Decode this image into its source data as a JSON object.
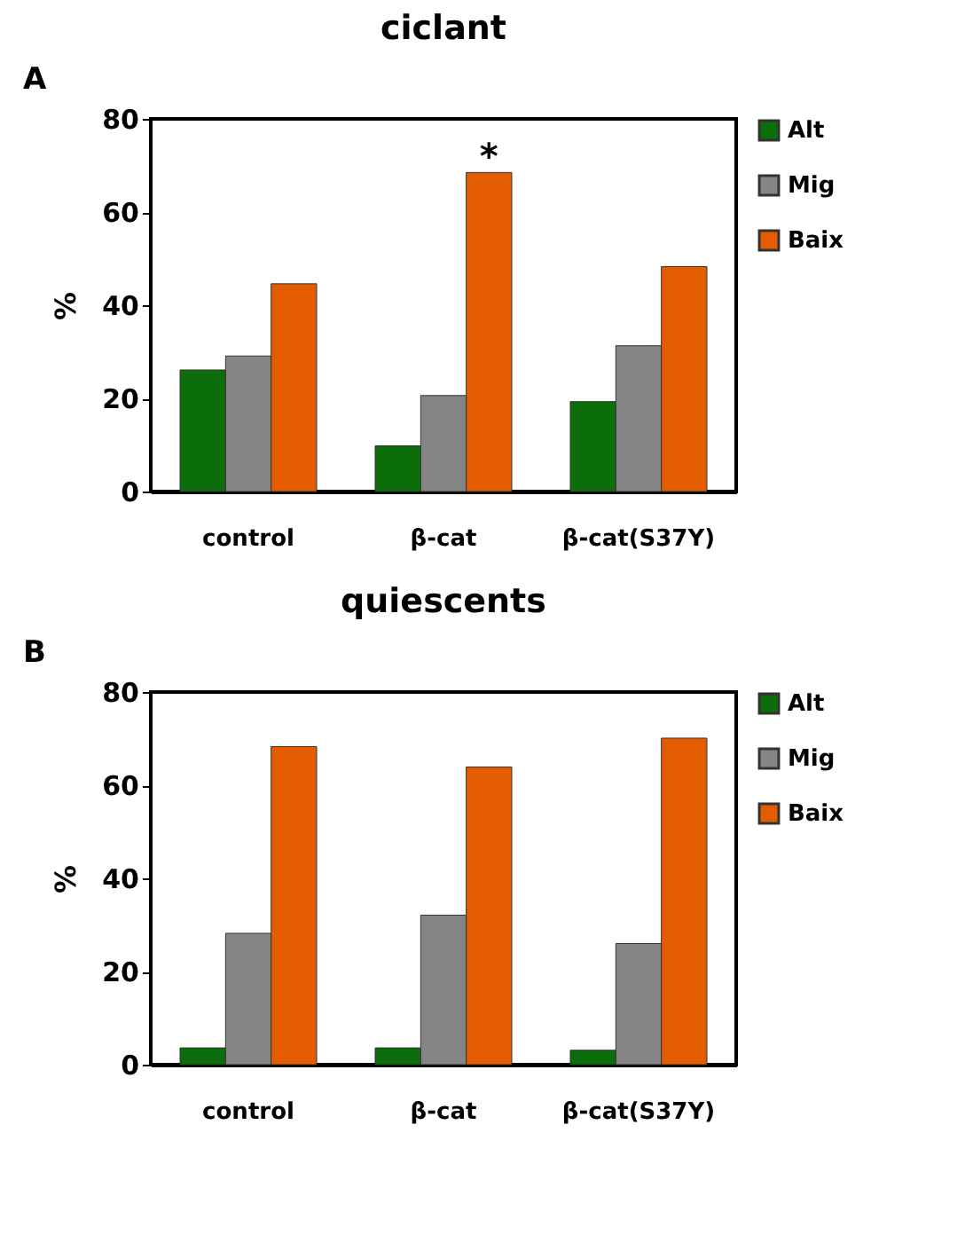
{
  "chart_data": [
    {
      "type": "bar",
      "title": "ciclant",
      "ylabel": "%",
      "categories": [
        "control",
        "β-cat",
        "β-cat(S37Y)"
      ],
      "series": [
        {
          "name": "Alt",
          "color": "#0b6e0b",
          "values": [
            26.1,
            9.8,
            19.3
          ]
        },
        {
          "name": "Mig",
          "color": "#858585",
          "values": [
            29.1,
            20.6,
            31.3
          ]
        },
        {
          "name": "Baix",
          "color": "#e35c00",
          "values": [
            44.6,
            68.5,
            48.3
          ]
        }
      ],
      "ylim": [
        0,
        80
      ],
      "yticks": [
        0,
        20,
        40,
        60,
        80
      ],
      "legend": "top right",
      "annotations": [
        "A",
        "*"
      ]
    },
    {
      "type": "bar",
      "title": "quiescents",
      "ylabel": "%",
      "categories": [
        "control",
        "β-cat",
        "β-cat(S37Y)"
      ],
      "series": [
        {
          "name": "Alt",
          "color": "#0b6e0b",
          "values": [
            3.6,
            3.6,
            3.1
          ]
        },
        {
          "name": "Mig",
          "color": "#858585",
          "values": [
            28.2,
            32.1,
            26.0
          ]
        },
        {
          "name": "Baix",
          "color": "#e35c00",
          "values": [
            68.3,
            63.9,
            70.1
          ]
        }
      ],
      "ylim": [
        0,
        80
      ],
      "yticks": [
        0,
        20,
        40,
        60,
        80
      ],
      "legend": "top right",
      "annotations": [
        "B"
      ]
    }
  ]
}
